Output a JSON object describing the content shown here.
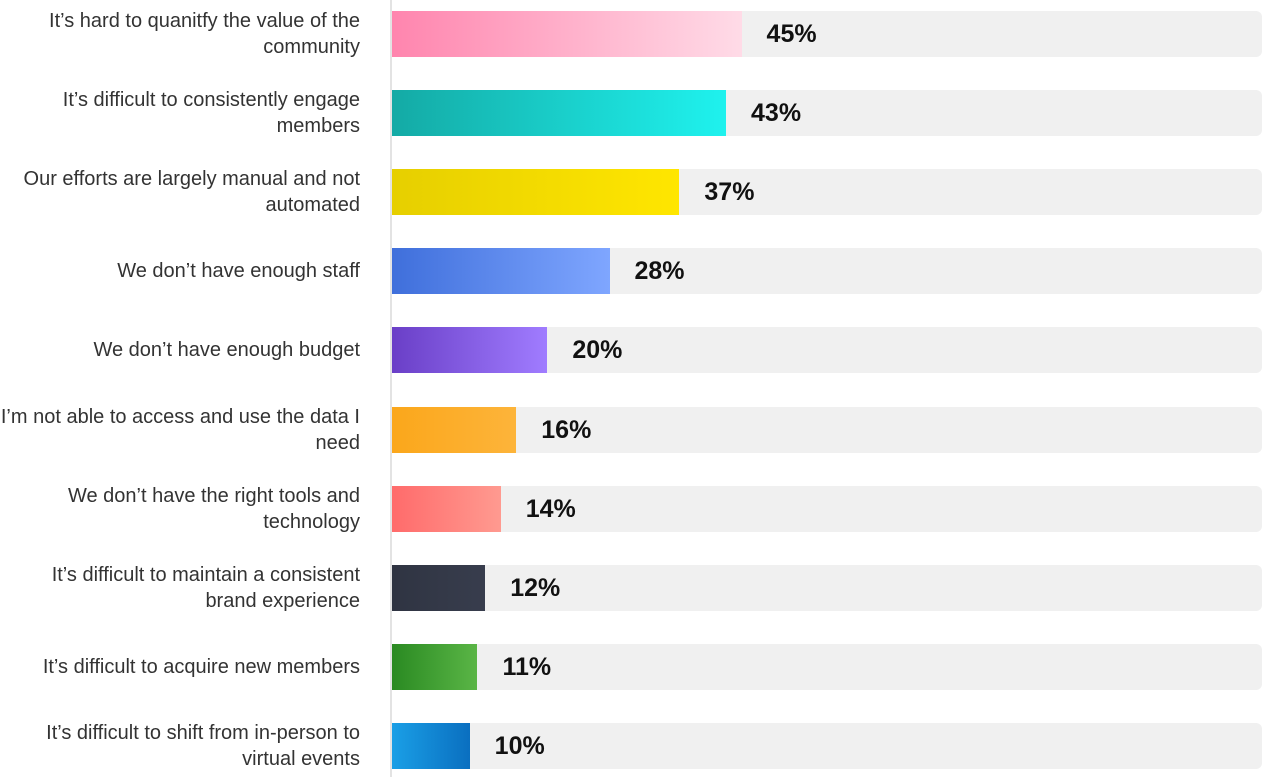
{
  "chart_data": {
    "type": "bar",
    "orientation": "horizontal",
    "categories": [
      "It’s hard to quanitfy the value of the community",
      "It’s difficult to consistently engage members",
      "Our efforts are largely manual and not automated",
      "We don’t have enough staff",
      "We don’t have enough budget",
      "I’m not able to access and use the data I need",
      "We don’t have the right tools and technology",
      "It’s difficult to maintain a consistent brand experience",
      "It’s difficult to acquire new members",
      "It’s difficult to shift from in-person to virtual events"
    ],
    "values": [
      45,
      43,
      37,
      28,
      20,
      16,
      14,
      12,
      11,
      10
    ],
    "value_labels": [
      "45%",
      "43%",
      "37%",
      "28%",
      "20%",
      "16%",
      "14%",
      "12%",
      "11%",
      "10%"
    ],
    "colors": [
      [
        "#ff85ae",
        "#ffdbe7"
      ],
      [
        "#14aaa5",
        "#1ff2ee"
      ],
      [
        "#e6cf00",
        "#ffe600"
      ],
      [
        "#3f6fdb",
        "#7fa6ff"
      ],
      [
        "#6a3fc7",
        "#a07cff"
      ],
      [
        "#fba71b",
        "#fdb43a"
      ],
      [
        "#ff6b6b",
        "#ff9a90"
      ],
      [
        "#2f3442",
        "#383d4d"
      ],
      [
        "#2a8a22",
        "#5ab546"
      ],
      [
        "#1a9fe6",
        "#0a6fc0"
      ]
    ],
    "track_color": "#f0f0f0",
    "xlim": [
      0,
      112
    ]
  }
}
